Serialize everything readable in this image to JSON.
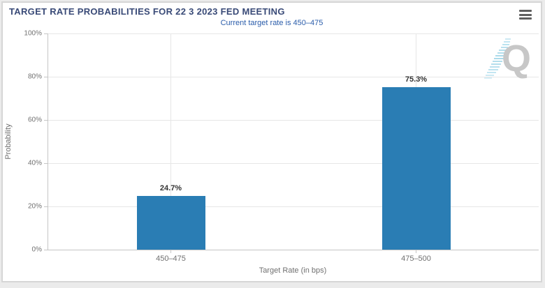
{
  "header": {
    "title": "TARGET RATE PROBABILITIES FOR 22 3 2023 FED MEETING"
  },
  "toolbar": {
    "menu_icon": "hamburger-icon"
  },
  "watermark": {
    "letter": "Q",
    "dash_color": "#a9d9e9",
    "letter_color": "#c7c7c7"
  },
  "colors": {
    "bar": "#2a7db4",
    "title": "#394a77",
    "subtitle": "#2a5caa",
    "grid": "#e6e6e6",
    "axis_line": "#c5c5c5",
    "tick_text": "#707070",
    "data_label": "#333333"
  },
  "chart_data": {
    "type": "bar",
    "title": "TARGET RATE PROBABILITIES FOR 22 3 2023 FED MEETING",
    "subtitle": "Current target rate is 450–475",
    "categories": [
      "450–475",
      "475–500"
    ],
    "values": [
      24.7,
      75.3
    ],
    "value_labels": [
      "24.7%",
      "75.3%"
    ],
    "xlabel": "Target Rate (in bps)",
    "ylabel": "Probability",
    "ylim": [
      0,
      100
    ],
    "y_ticks_percent": [
      0,
      20,
      40,
      60,
      80,
      100
    ],
    "y_tick_labels": [
      "0%",
      "20%",
      "40%",
      "60%",
      "80%",
      "100%"
    ],
    "grid": true,
    "legend": false
  }
}
